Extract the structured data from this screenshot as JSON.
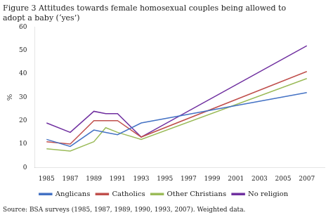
{
  "chart_data": {
    "type": "line",
    "title": "Figure 3 Attitudes towards female homosexual couples being allowed to\nadopt a baby (‘yes’)",
    "annotations": [
      "Source: BSA surveys (1985, 1987, 1989, 1990, 1993, 2007). Weighted data."
    ],
    "y_label": "%",
    "x": [
      1985,
      1987,
      1989,
      1990,
      1991,
      1993,
      2007
    ],
    "series": [
      {
        "name": "Anglicans",
        "color": "#4472c4",
        "values": [
          12,
          9,
          16,
          15,
          14,
          19,
          32
        ]
      },
      {
        "name": "Catholics",
        "color": "#c0504d",
        "values": [
          11,
          10,
          20,
          20,
          20,
          13,
          41
        ]
      },
      {
        "name": "Other Christians",
        "color": "#9bbb59",
        "values": [
          8,
          7,
          11,
          17,
          15,
          12,
          38
        ]
      },
      {
        "name": "No religion",
        "color": "#7030a0",
        "values": [
          19,
          15,
          24,
          23,
          23,
          13,
          52
        ]
      }
    ],
    "xlim": [
      1984,
      2008.5
    ],
    "xticks": [
      1985,
      1987,
      1989,
      1991,
      1993,
      1995,
      1997,
      1999,
      2001,
      2003,
      2005,
      2007
    ],
    "ylim": [
      0,
      60
    ],
    "yticks": [
      0,
      10,
      20,
      30,
      40,
      50,
      60
    ],
    "grid": false,
    "legend": "bottom"
  }
}
